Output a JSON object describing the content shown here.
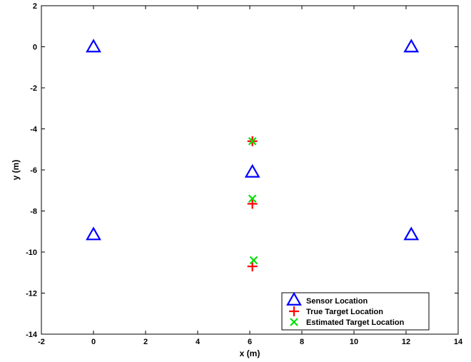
{
  "chart_data": {
    "type": "scatter",
    "title": "",
    "xlabel": "x (m)",
    "ylabel": "y (m)",
    "xlim": [
      -2,
      14
    ],
    "ylim": [
      -14,
      2
    ],
    "xticks": [
      -2,
      0,
      2,
      4,
      6,
      8,
      10,
      12,
      14
    ],
    "yticks": [
      -14,
      -12,
      -10,
      -8,
      -6,
      -4,
      -2,
      0,
      2
    ],
    "grid": false,
    "legend_position": "bottom-right",
    "series": [
      {
        "name": "Sensor Location",
        "marker": "triangle",
        "color": "#0000ff",
        "points": [
          {
            "x": 0,
            "y": 0
          },
          {
            "x": 12.2,
            "y": 0
          },
          {
            "x": 6.1,
            "y": -6.1
          },
          {
            "x": 0,
            "y": -9.15
          },
          {
            "x": 12.2,
            "y": -9.15
          }
        ]
      },
      {
        "name": "True Target Location",
        "marker": "plus",
        "color": "#ff0000",
        "points": [
          {
            "x": 6.1,
            "y": -4.6
          },
          {
            "x": 6.1,
            "y": -7.65
          },
          {
            "x": 6.1,
            "y": -10.7
          }
        ]
      },
      {
        "name": "Estimated Target Location",
        "marker": "x",
        "color": "#00e000",
        "points": [
          {
            "x": 6.1,
            "y": -4.6
          },
          {
            "x": 6.1,
            "y": -7.4
          },
          {
            "x": 6.15,
            "y": -10.4
          }
        ]
      }
    ]
  }
}
